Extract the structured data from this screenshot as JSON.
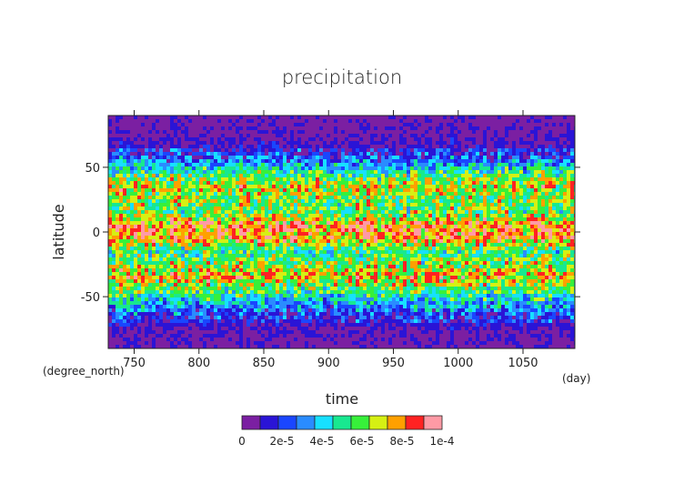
{
  "chart_data": {
    "type": "heatmap",
    "title": "precipitation",
    "xlabel": "time",
    "ylabel": "latitude",
    "x_unit": "(day)",
    "y_unit": "(degree_north)",
    "xlim": [
      730,
      1090
    ],
    "ylim": [
      -90,
      90
    ],
    "x_ticks": [
      750,
      800,
      850,
      900,
      950,
      1000,
      1050
    ],
    "y_ticks": [
      50,
      0,
      -50
    ],
    "colorbar": {
      "ticks": [
        "0",
        "2e-5",
        "4e-5",
        "6e-5",
        "8e-5",
        "1e-4"
      ],
      "colors": [
        "#7b1fa2",
        "#2a14d6",
        "#1a46ff",
        "#2a8cff",
        "#17e0ff",
        "#18e890",
        "#37f03a",
        "#d6f013",
        "#ffa000",
        "#ff2222",
        "#ff9aa5"
      ]
    },
    "latitude_profile": [
      {
        "lat": -90,
        "level": 0
      },
      {
        "lat": -75,
        "level": 0.4
      },
      {
        "lat": -65,
        "level": 1.6
      },
      {
        "lat": -55,
        "level": 3.6
      },
      {
        "lat": -45,
        "level": 5.6
      },
      {
        "lat": -35,
        "level": 7.6
      },
      {
        "lat": -25,
        "level": 6.4
      },
      {
        "lat": -15,
        "level": 5.0
      },
      {
        "lat": -5,
        "level": 8.2
      },
      {
        "lat": 5,
        "level": 8.6
      },
      {
        "lat": 15,
        "level": 5.8
      },
      {
        "lat": 25,
        "level": 6.2
      },
      {
        "lat": 35,
        "level": 7.0
      },
      {
        "lat": 45,
        "level": 5.2
      },
      {
        "lat": 55,
        "level": 2.6
      },
      {
        "lat": 65,
        "level": 0.8
      },
      {
        "lat": 75,
        "level": 0.2
      },
      {
        "lat": 90,
        "level": 0
      }
    ]
  }
}
